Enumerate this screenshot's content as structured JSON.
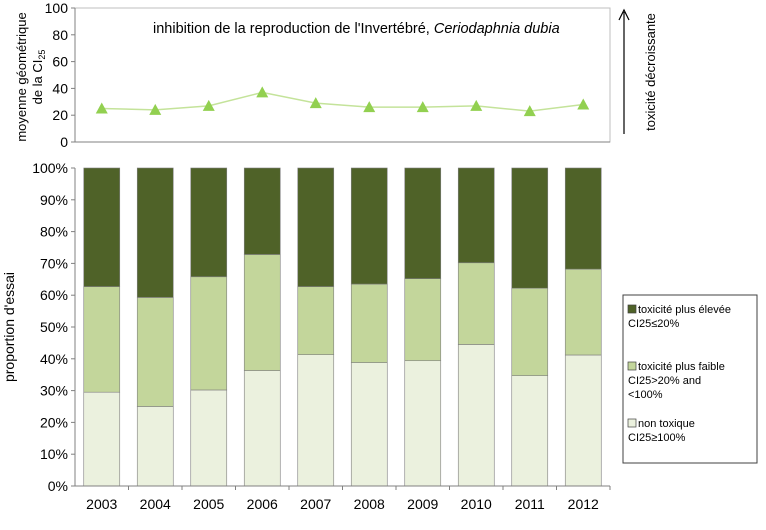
{
  "chart_data": [
    {
      "type": "line",
      "title": "inhibition  de la reproduction de l'Invertébré, ",
      "title_italic": "Ceriodaphnia dubia",
      "ylabel_line1": "moyenne  géométrique",
      "ylabel_line2": "de la CI",
      "ylabel_sub": "25",
      "ylim": [
        0,
        100
      ],
      "yticks": [
        "0",
        "20",
        "40",
        "60",
        "80",
        "100"
      ],
      "x": [
        "2003",
        "2004",
        "2005",
        "2006",
        "2007",
        "2008",
        "2009",
        "2010",
        "2011",
        "2012"
      ],
      "values": [
        25,
        24,
        27,
        37,
        29,
        26,
        26,
        27,
        23,
        28
      ],
      "marker": "triangle",
      "color": "#92d050",
      "line_color": "#c4e39a",
      "grid": false,
      "side_annotation": "toxicité décroissante"
    },
    {
      "type": "bar",
      "stacked": true,
      "ylabel": "proportion d'essai",
      "ylim": [
        0,
        100
      ],
      "yticks": [
        "0%",
        "10%",
        "20%",
        "30%",
        "40%",
        "50%",
        "60%",
        "70%",
        "80%",
        "90%",
        "100%"
      ],
      "categories": [
        "2003",
        "2004",
        "2005",
        "2006",
        "2007",
        "2008",
        "2009",
        "2010",
        "2011",
        "2012"
      ],
      "series": [
        {
          "name_line1": "non toxique",
          "name_line2": "CI25≥100%",
          "name_line3": "",
          "color": "#ebf1de",
          "values": [
            29.5,
            25.0,
            30.2,
            36.3,
            41.3,
            38.8,
            39.4,
            44.5,
            34.7,
            41.2
          ]
        },
        {
          "name_line1": "toxicité plus faible",
          "name_line2": "CI25>20% and",
          "name_line3": "<100%",
          "color": "#c3d69b",
          "values": [
            33.2,
            34.3,
            35.6,
            36.5,
            21.4,
            24.7,
            25.8,
            25.7,
            27.5,
            27.0
          ]
        },
        {
          "name_line1": "toxicité plus élevée",
          "name_line2": "CI25≤20%",
          "name_line3": "",
          "color": "#4f6228",
          "values": [
            37.3,
            40.7,
            34.2,
            27.2,
            37.3,
            36.5,
            34.8,
            29.8,
            37.8,
            31.8
          ]
        }
      ],
      "legend_position": "right",
      "grid": false
    }
  ]
}
